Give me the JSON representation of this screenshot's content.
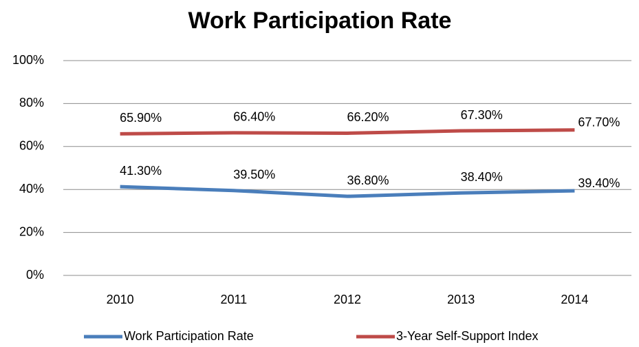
{
  "chart_data": {
    "type": "line",
    "title": "Work Participation Rate",
    "categories": [
      "2010",
      "2011",
      "2012",
      "2013",
      "2014"
    ],
    "series": [
      {
        "name": "Work Participation Rate",
        "color": "#4a7ebb",
        "values": [
          41.3,
          39.5,
          36.8,
          38.4,
          39.4
        ],
        "value_labels": [
          "41.30%",
          "39.50%",
          "36.80%",
          "38.40%",
          "39.40%"
        ]
      },
      {
        "name": "3-Year Self-Support Index",
        "color": "#be4b48",
        "values": [
          65.9,
          66.4,
          66.2,
          67.3,
          67.7
        ],
        "value_labels": [
          "65.90%",
          "66.40%",
          "66.20%",
          "67.30%",
          "67.70%"
        ]
      }
    ],
    "ylim": [
      0,
      100
    ],
    "yticks": [
      {
        "value": 0,
        "label": "0%"
      },
      {
        "value": 20,
        "label": "20%"
      },
      {
        "value": 40,
        "label": "40%"
      },
      {
        "value": 60,
        "label": "60%"
      },
      {
        "value": 80,
        "label": "80%"
      },
      {
        "value": 100,
        "label": "100%"
      }
    ],
    "grid": true,
    "legend": "bottom"
  }
}
